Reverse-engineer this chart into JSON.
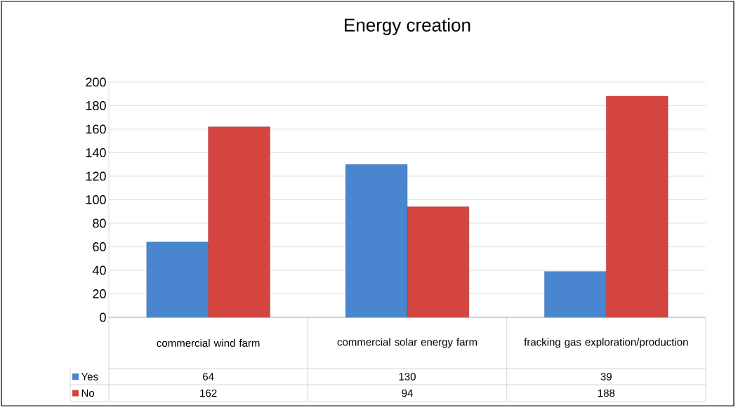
{
  "chart_data": {
    "type": "bar",
    "title": "Energy creation",
    "categories": [
      "commercial wind farm",
      "commercial solar energy farm",
      "fracking gas exploration/production"
    ],
    "series": [
      {
        "name": "Yes",
        "color": "#4a86d0",
        "values": [
          64,
          130,
          39
        ]
      },
      {
        "name": "No",
        "color": "#d4453f",
        "values": [
          162,
          94,
          188
        ]
      }
    ],
    "ylim": [
      0,
      200
    ],
    "yticks": [
      0,
      20,
      40,
      60,
      80,
      100,
      120,
      140,
      160,
      180,
      200
    ],
    "grid": "y",
    "legend": "bottom left",
    "data_labels": true
  }
}
